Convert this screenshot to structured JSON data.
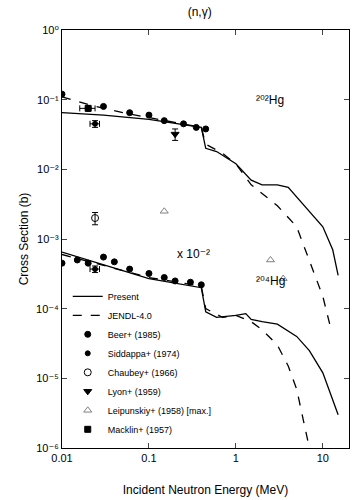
{
  "chart_data": {
    "type": "line",
    "title": "(n,γ)",
    "x_label": "Incident Neutron Energy (MeV)",
    "y_label": "Cross Section (b)",
    "log": true,
    "grid": false,
    "legend": "lower left",
    "xlim": [
      0.01,
      20
    ],
    "ylim": [
      1e-06,
      1
    ],
    "xticks": [
      0.01,
      0.1,
      1,
      10
    ],
    "yticks": [
      {
        "value": 1e-06,
        "label": "10⁻⁶"
      },
      {
        "value": 1e-05,
        "label": "10⁻⁵"
      },
      {
        "value": 0.0001,
        "label": "10⁻⁴"
      },
      {
        "value": 0.001,
        "label": "10⁻³"
      },
      {
        "value": 0.01,
        "label": "10⁻²"
      },
      {
        "value": 0.1,
        "label": "10⁻¹"
      },
      {
        "value": 1,
        "label": "10⁰"
      }
    ],
    "annotations": [
      {
        "text": "²⁰²Hg",
        "x": 1.6,
        "y": 0.1
      },
      {
        "text": "x 10⁻²",
        "x": 0.2,
        "y": 0.0006
      },
      {
        "text": "²⁰⁴Hg",
        "x": 1.6,
        "y": 0.00025
      }
    ],
    "series": [
      {
        "name": "Present",
        "type": "line",
        "color": "#000000",
        "line_style": "solid",
        "x": [
          0.01,
          0.03,
          0.1,
          0.4,
          0.45,
          0.6,
          1,
          1.5,
          2,
          3,
          4,
          5,
          7,
          10,
          13,
          15
        ],
        "values": [
          0.065,
          0.06,
          0.052,
          0.04,
          0.02,
          0.018,
          0.012,
          0.007,
          0.006,
          0.006,
          0.0055,
          0.004,
          0.0025,
          0.0015,
          0.0007,
          0.0003
        ]
      },
      {
        "name": "JENDL-4.0",
        "type": "line",
        "color": "#000000",
        "line_style": "dash",
        "x": [
          0.01,
          0.02,
          0.05,
          0.1,
          0.4,
          0.45,
          0.7,
          1,
          1.5,
          2,
          3,
          5,
          7,
          10,
          12
        ],
        "values": [
          0.11,
          0.085,
          0.065,
          0.055,
          0.04,
          0.023,
          0.017,
          0.012,
          0.006,
          0.0045,
          0.003,
          0.0015,
          0.0005,
          0.00015,
          6e-05
        ]
      },
      {
        "name": "Present",
        "type": "line",
        "color": "#000000",
        "line_style": "solid",
        "x": [
          0.01,
          0.05,
          0.1,
          0.4,
          0.45,
          0.6,
          1,
          1.3,
          1.5,
          2,
          3,
          5,
          7,
          10,
          13,
          15
        ],
        "values": [
          0.00065,
          0.00035,
          0.00027,
          0.0002,
          9e-05,
          7.5e-05,
          8e-05,
          8.5e-05,
          7e-05,
          6.5e-05,
          6e-05,
          4e-05,
          2.5e-05,
          1.2e-05,
          5e-06,
          3e-06
        ]
      },
      {
        "name": "JENDL-4.0",
        "type": "line",
        "color": "#000000",
        "line_style": "dash",
        "x": [
          0.01,
          0.1,
          0.4,
          0.45,
          0.7,
          1,
          1.5,
          2,
          3,
          4,
          5,
          6,
          7
        ],
        "values": [
          0.0006,
          0.00028,
          0.00021,
          0.0001,
          7.5e-05,
          8e-05,
          6.5e-05,
          5e-05,
          3e-05,
          1.5e-05,
          7e-06,
          2.5e-06,
          1e-06
        ]
      },
      {
        "name": "Beer+ (1985)",
        "type": "scatter",
        "color": "#000000",
        "marker": "circle",
        "x": [
          0.01,
          0.02,
          0.03,
          0.06,
          0.1,
          0.15,
          0.25,
          0.35,
          0.45
        ],
        "values": [
          0.12,
          0.075,
          0.08,
          0.065,
          0.06,
          0.05,
          0.045,
          0.04,
          0.038
        ]
      },
      {
        "name": "Beer+ (1985)",
        "type": "scatter",
        "color": "#000000",
        "marker": "circle",
        "x": [
          0.01,
          0.015,
          0.02,
          0.03,
          0.04,
          0.06,
          0.1,
          0.15,
          0.2,
          0.3,
          0.4
        ],
        "values": [
          0.00045,
          0.0005,
          0.00045,
          0.00055,
          0.00047,
          0.00037,
          0.00032,
          0.00028,
          0.00025,
          0.00024,
          0.00022
        ]
      },
      {
        "name": "Siddappa+ (1974)",
        "type": "scatter",
        "color": "#000000",
        "marker": "circle-small",
        "x": [
          0.024
        ],
        "values": [
          0.045
        ],
        "x_err": [
          0.003
        ],
        "y_err": [
          0.005
        ]
      },
      {
        "name": "Siddappa+ (1974)",
        "type": "scatter",
        "color": "#000000",
        "marker": "circle-small",
        "x": [
          0.024
        ],
        "values": [
          0.00037
        ],
        "x_err": [
          0.003
        ],
        "y_err": [
          4e-05
        ]
      },
      {
        "name": "Chaubey+ (1966)",
        "type": "scatter",
        "color": "#000000",
        "marker": "circle-open",
        "x": [
          0.024
        ],
        "values": [
          0.002
        ],
        "y_err": [
          0.0004
        ]
      },
      {
        "name": "Lyon+ (1959)",
        "type": "scatter",
        "color": "#000000",
        "marker": "triangle-down",
        "x": [
          0.2
        ],
        "values": [
          0.032
        ],
        "y_err": [
          0.006
        ]
      },
      {
        "name": "Leipunskiy+ (1958) [max.]",
        "type": "scatter",
        "color": "#808080",
        "marker": "triangle-up-open",
        "x": [
          0.15,
          2.5,
          3.5
        ],
        "values": [
          0.0025,
          0.0005,
          0.00027
        ]
      },
      {
        "name": "Macklin+ (1957)",
        "type": "scatter",
        "color": "#000000",
        "marker": "square",
        "x": [
          0.02
        ],
        "values": [
          0.075
        ],
        "x_err": [
          0.004
        ]
      }
    ]
  }
}
